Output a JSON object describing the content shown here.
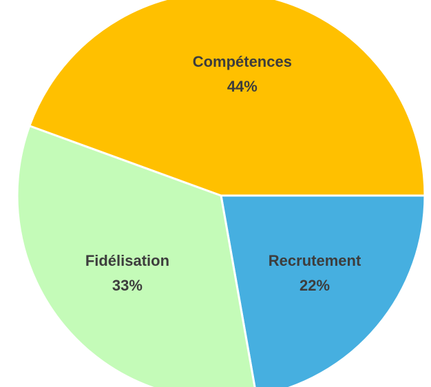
{
  "chart_data": {
    "type": "pie",
    "categories": [
      "Recrutement",
      "Fidélisation",
      "Compétences"
    ],
    "values": [
      22,
      33,
      44
    ],
    "value_labels": [
      "22%",
      "33%",
      "44%"
    ],
    "colors": [
      "#46afe0",
      "#c4fbb8",
      "#ffc000"
    ]
  }
}
